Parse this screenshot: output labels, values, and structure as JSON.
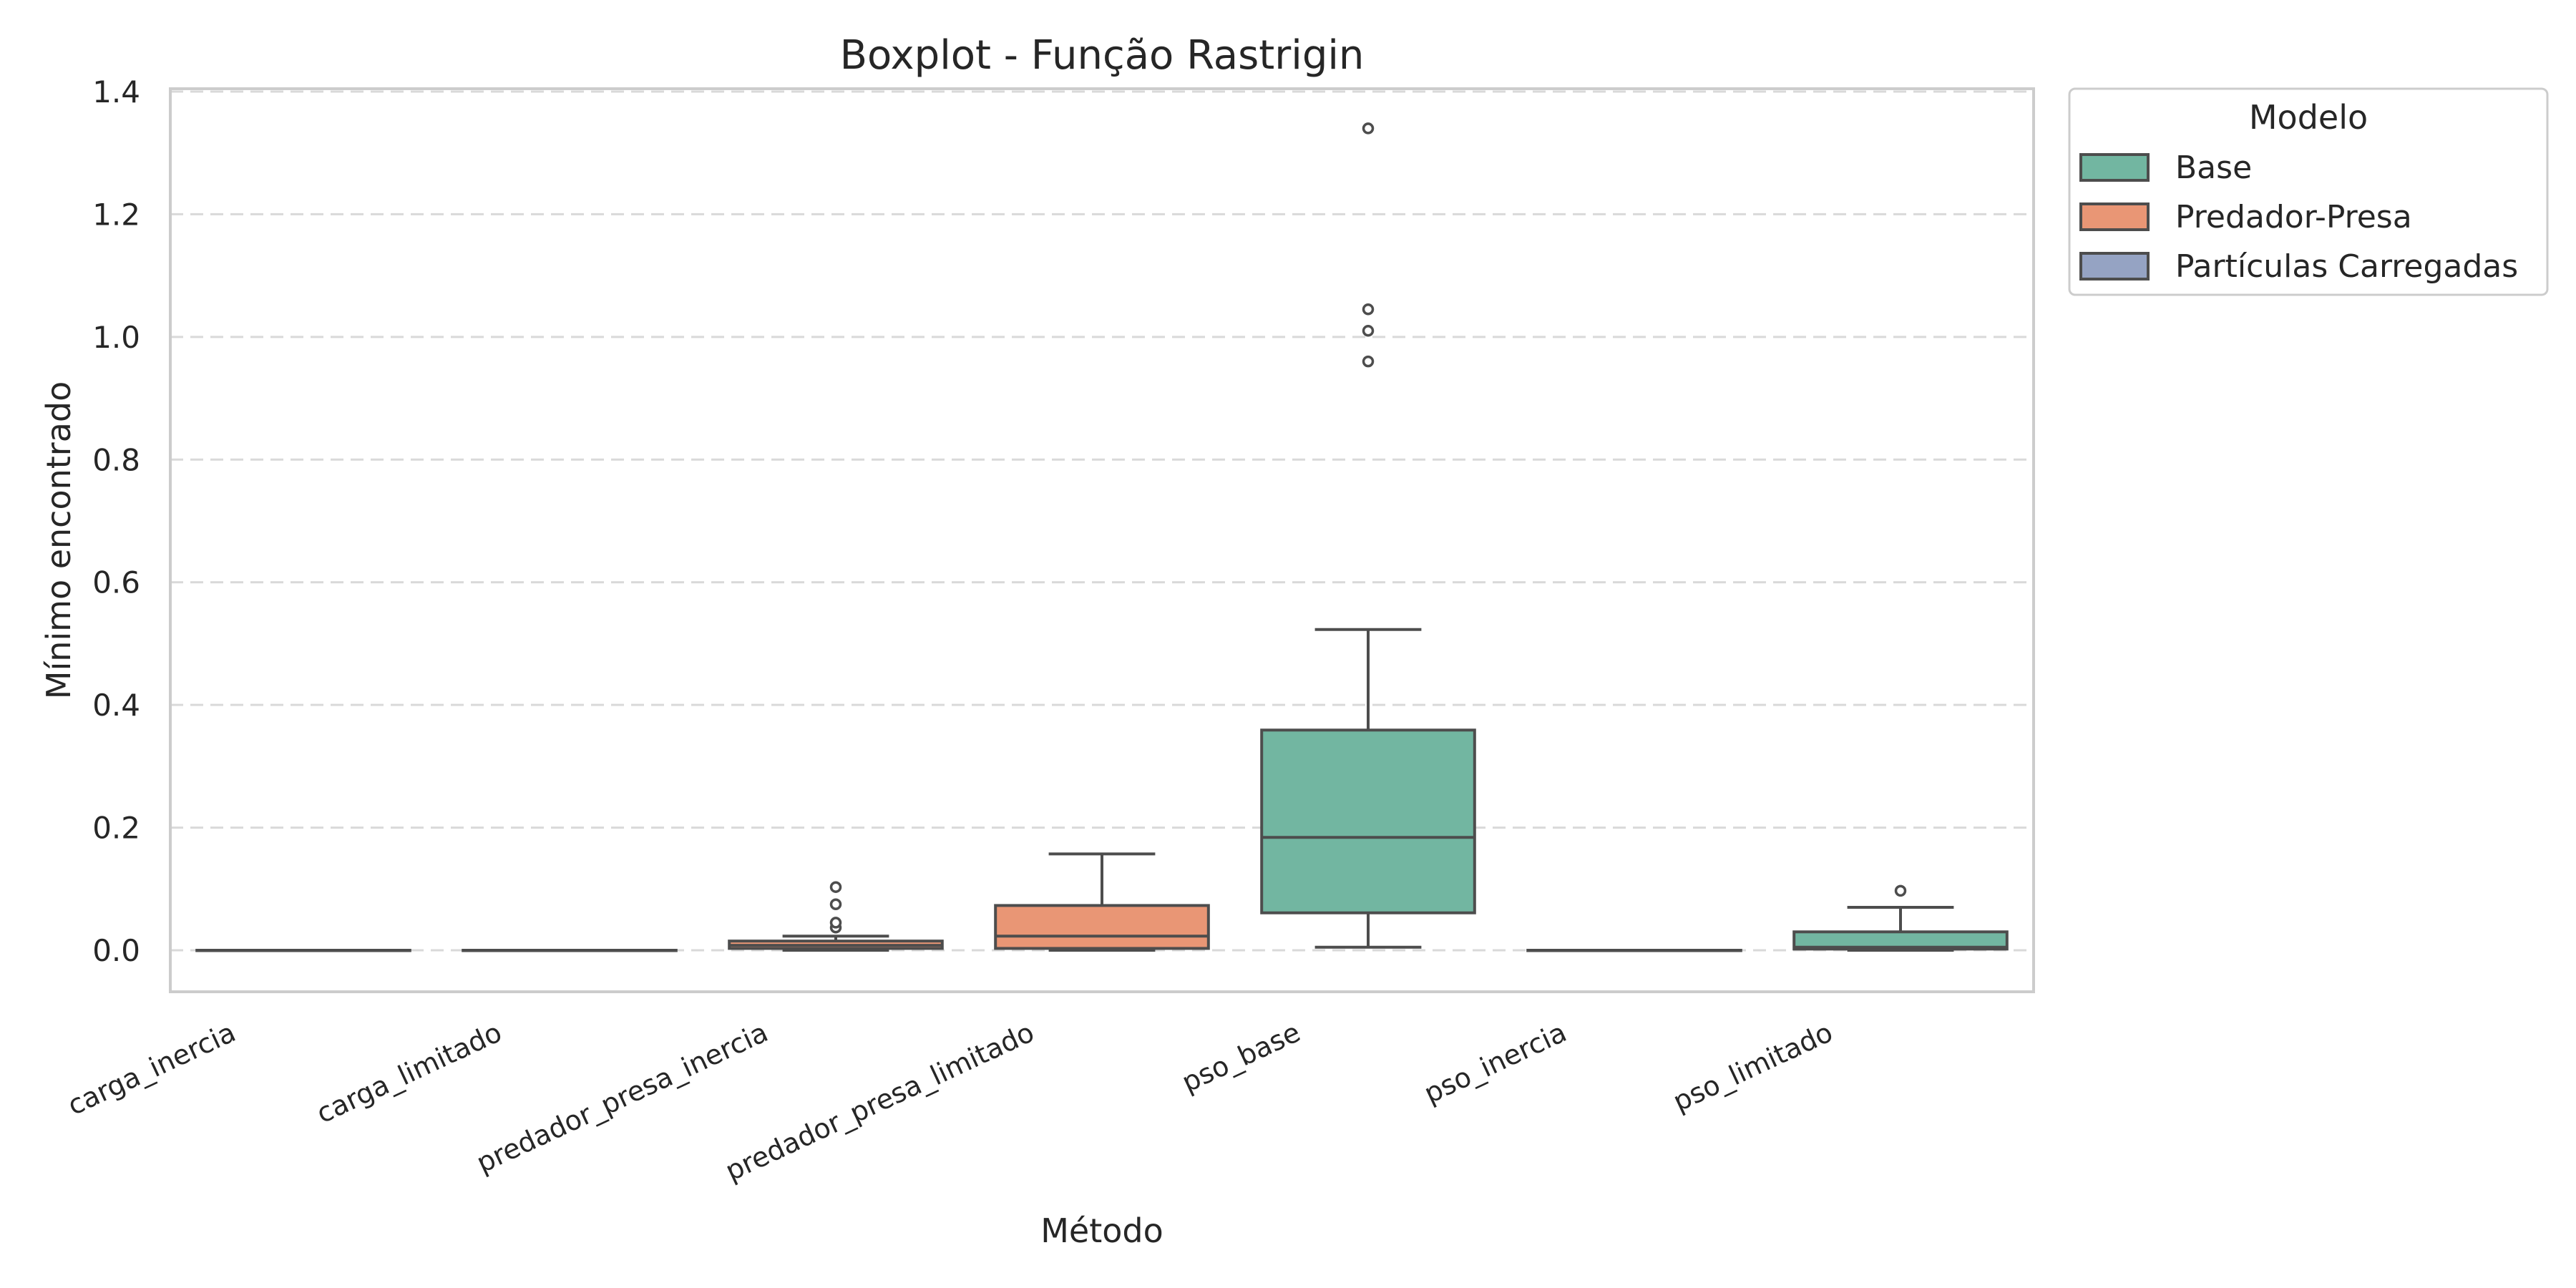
{
  "chart_data": {
    "type": "box",
    "title": "Boxplot - Função Rastrigin",
    "xlabel": "Método",
    "ylabel": "Mínimo encontrado",
    "ylim": [
      -0.065,
      1.41
    ],
    "yticks": [
      0.0,
      0.2,
      0.4,
      0.6,
      0.8,
      1.0,
      1.2,
      1.4
    ],
    "ytick_labels": [
      "0.0",
      "0.2",
      "0.4",
      "0.6",
      "0.8",
      "1.0",
      "1.2",
      "1.4"
    ],
    "grid": "y, dashed",
    "legend": {
      "title": "Modelo",
      "placement": "outside top-right",
      "entries": [
        {
          "label": "Base",
          "color": "#72b6a1"
        },
        {
          "label": "Predador-Presa",
          "color": "#e99675"
        },
        {
          "label": "Partículas Carregadas",
          "color": "#95a3c3"
        }
      ]
    },
    "categories": [
      "carga_inercia",
      "carga_limitado",
      "predador_presa_inercia",
      "predador_presa_limitado",
      "pso_base",
      "pso_inercia",
      "pso_limitado"
    ],
    "boxes": [
      {
        "category": "carga_inercia",
        "model": "Partículas Carregadas",
        "whisker_low": 0.0,
        "q1": 0.0,
        "median": 0.0,
        "q3": 0.0,
        "whisker_high": 0.0,
        "outliers": []
      },
      {
        "category": "carga_limitado",
        "model": "Partículas Carregadas",
        "whisker_low": 0.0,
        "q1": 0.0,
        "median": 0.0,
        "q3": 0.0,
        "whisker_high": 0.0,
        "outliers": []
      },
      {
        "category": "predador_presa_inercia",
        "model": "Predador-Presa",
        "whisker_low": 0.0,
        "q1": 0.003,
        "median": 0.008,
        "q3": 0.015,
        "whisker_high": 0.023,
        "outliers": [
          0.037,
          0.045,
          0.075,
          0.103
        ]
      },
      {
        "category": "predador_presa_limitado",
        "model": "Predador-Presa",
        "whisker_low": 0.0,
        "q1": 0.003,
        "median": 0.023,
        "q3": 0.073,
        "whisker_high": 0.157,
        "outliers": []
      },
      {
        "category": "pso_base",
        "model": "Base",
        "whisker_low": 0.005,
        "q1": 0.061,
        "median": 0.184,
        "q3": 0.359,
        "whisker_high": 0.523,
        "outliers": [
          0.96,
          1.01,
          1.045,
          1.34
        ]
      },
      {
        "category": "pso_inercia",
        "model": "Base",
        "whisker_low": 0.0,
        "q1": 0.0,
        "median": 0.0,
        "q3": 0.0,
        "whisker_high": 0.0,
        "outliers": []
      },
      {
        "category": "pso_limitado",
        "model": "Base",
        "whisker_low": 0.0,
        "q1": 0.002,
        "median": 0.005,
        "q3": 0.03,
        "whisker_high": 0.07,
        "outliers": [
          0.097
        ]
      }
    ]
  }
}
